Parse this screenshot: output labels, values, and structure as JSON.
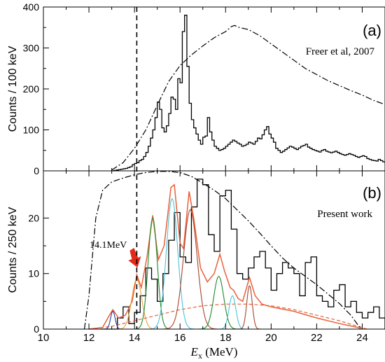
{
  "x_axis": {
    "label_symbol": "E",
    "label_subscript": "x",
    "label_unit": " (MeV)",
    "range": [
      10,
      25
    ],
    "ticks": [
      10,
      12,
      14,
      16,
      18,
      20,
      22,
      24
    ]
  },
  "chart_data": [
    {
      "type": "line",
      "panel": "(a)",
      "annotation": "Freer et al, 2007",
      "ylabel": "Counts / 100 keV",
      "ylim": [
        0,
        400
      ],
      "yticks": [
        0,
        100,
        200,
        300,
        400
      ],
      "series": [
        {
          "style": "histogram",
          "color": "#000000",
          "x_start": 13.0,
          "bin_width": 0.1,
          "values": [
            0,
            1,
            2,
            3,
            4,
            5,
            6,
            8,
            10,
            15,
            18,
            20,
            25,
            28,
            35,
            45,
            60,
            80,
            100,
            130,
            168,
            150,
            105,
            95,
            110,
            140,
            180,
            175,
            150,
            225,
            215,
            340,
            380,
            255,
            165,
            125,
            105,
            90,
            75,
            65,
            82,
            85,
            130,
            95,
            75,
            60,
            55,
            50,
            52,
            55,
            60,
            65,
            70,
            75,
            72,
            68,
            65,
            60,
            62,
            65,
            70,
            68,
            65,
            72,
            80,
            78,
            88,
            100,
            108,
            90,
            80,
            70,
            55,
            50,
            45,
            48,
            52,
            56,
            60,
            58,
            55,
            52,
            56,
            60,
            62,
            65,
            58,
            55,
            52,
            50,
            48,
            46,
            50,
            52,
            48,
            46,
            44,
            46,
            48,
            45,
            42,
            40,
            38,
            40,
            42,
            40,
            38,
            35,
            33,
            35,
            37,
            35,
            30,
            28,
            26,
            25,
            24,
            28,
            25,
            22,
            20,
            22,
            24,
            22,
            20,
            18,
            16,
            15,
            17,
            18,
            15,
            14,
            12,
            10,
            9,
            10,
            11,
            10,
            9,
            8,
            7,
            6,
            5,
            6,
            7,
            6,
            5,
            4,
            5,
            6,
            5,
            4,
            3,
            4,
            5,
            4,
            3,
            3,
            4,
            3,
            3,
            2,
            3,
            4,
            3,
            2
          ]
        },
        {
          "style": "dash-dot",
          "color": "#000000",
          "points": [
            [
              13.0,
              2
            ],
            [
              13.5,
              20
            ],
            [
              14.0,
              55
            ],
            [
              14.5,
              100
            ],
            [
              15.0,
              160
            ],
            [
              15.5,
              218
            ],
            [
              16.0,
              257
            ],
            [
              16.5,
              283
            ],
            [
              17.0,
              305
            ],
            [
              17.5,
              325
            ],
            [
              18.0,
              340
            ],
            [
              18.25,
              352
            ],
            [
              18.4,
              355
            ],
            [
              18.6,
              350
            ],
            [
              19.0,
              345
            ],
            [
              19.5,
              330
            ],
            [
              20.0,
              310
            ],
            [
              20.5,
              290
            ],
            [
              21.0,
              270
            ],
            [
              21.5,
              250
            ],
            [
              22.0,
              235
            ],
            [
              22.5,
              220
            ],
            [
              23.0,
              208
            ],
            [
              23.5,
              196
            ],
            [
              24.0,
              185
            ],
            [
              24.5,
              172
            ],
            [
              25.0,
              162
            ]
          ]
        }
      ]
    },
    {
      "type": "line",
      "panel": "(b)",
      "annotation": "Present work",
      "callout": "14.1MeV",
      "callout_x": 14.1,
      "ylabel": "Counts / 250 keV",
      "ylim": [
        0,
        28.5
      ],
      "yticks": [
        0,
        10,
        20
      ],
      "series": [
        {
          "style": "histogram",
          "color": "#000000",
          "x_start": 12.5,
          "bin_width": 0.25,
          "values": [
            0,
            0,
            0,
            2,
            4,
            1,
            3,
            6,
            11,
            9,
            5,
            10,
            16,
            21,
            13,
            12,
            22,
            27,
            26,
            17,
            14,
            24,
            25,
            18,
            10,
            9,
            11,
            13,
            14,
            11,
            7,
            10,
            12,
            11,
            10,
            6,
            12,
            13,
            6,
            5,
            4,
            7,
            8,
            4,
            5,
            3,
            2,
            3,
            4,
            2
          ]
        },
        {
          "style": "solid",
          "color": "#e8603a",
          "role": "total fit",
          "points": [
            [
              12.0,
              0
            ],
            [
              12.6,
              0.3
            ],
            [
              12.9,
              2.5
            ],
            [
              13.05,
              3.5
            ],
            [
              13.3,
              2.0
            ],
            [
              13.6,
              2.5
            ],
            [
              13.9,
              5.0
            ],
            [
              14.1,
              9.8
            ],
            [
              14.3,
              7.5
            ],
            [
              14.55,
              13.0
            ],
            [
              14.8,
              20.5
            ],
            [
              15.05,
              12.5
            ],
            [
              15.3,
              15.0
            ],
            [
              15.6,
              25.5
            ],
            [
              15.75,
              26.0
            ],
            [
              16.0,
              15.5
            ],
            [
              16.15,
              14.5
            ],
            [
              16.4,
              24.8
            ],
            [
              16.6,
              20.0
            ],
            [
              16.9,
              11.0
            ],
            [
              17.2,
              8.5
            ],
            [
              17.5,
              10.0
            ],
            [
              17.75,
              13.5
            ],
            [
              17.95,
              10.5
            ],
            [
              18.2,
              7.5
            ],
            [
              18.35,
              7.0
            ],
            [
              18.55,
              5.5
            ],
            [
              18.75,
              5.0
            ],
            [
              19.05,
              9.3
            ],
            [
              19.3,
              6.0
            ],
            [
              19.6,
              4.5
            ],
            [
              20.0,
              4.0
            ],
            [
              21.0,
              3.2
            ],
            [
              22.0,
              2.0
            ],
            [
              23.0,
              1.0
            ],
            [
              23.8,
              0.3
            ],
            [
              24.0,
              0
            ]
          ]
        },
        {
          "style": "dashed",
          "color": "#e8603a",
          "role": "background",
          "points": [
            [
              12.0,
              0
            ],
            [
              13.0,
              0.5
            ],
            [
              14.0,
              1.5
            ],
            [
              15.0,
              2.5
            ],
            [
              16.0,
              3.5
            ],
            [
              17.0,
              4.2
            ],
            [
              18.0,
              4.5
            ],
            [
              19.0,
              4.5
            ],
            [
              20.0,
              4.2
            ],
            [
              21.0,
              3.5
            ],
            [
              22.0,
              2.5
            ],
            [
              23.0,
              1.5
            ],
            [
              23.8,
              0.5
            ],
            [
              24.2,
              0
            ]
          ]
        },
        {
          "style": "dash-dot",
          "color": "#000000",
          "role": "efficiency",
          "points": [
            [
              11.8,
              0
            ],
            [
              12.0,
              6
            ],
            [
              12.3,
              20
            ],
            [
              12.6,
              25
            ],
            [
              13.0,
              26.5
            ],
            [
              13.5,
              27.2
            ],
            [
              14.0,
              27.8
            ],
            [
              14.5,
              28.2
            ],
            [
              15.0,
              28.4
            ],
            [
              15.5,
              28.4
            ],
            [
              16.0,
              28.2
            ],
            [
              16.5,
              27.5
            ],
            [
              17.0,
              26.3
            ],
            [
              17.5,
              25.0
            ],
            [
              18.0,
              23.5
            ],
            [
              18.5,
              21.5
            ],
            [
              19.0,
              19.5
            ],
            [
              19.5,
              17.3
            ],
            [
              20.0,
              15.0
            ],
            [
              20.5,
              12.8
            ],
            [
              21.0,
              11.0
            ],
            [
              21.5,
              9.5
            ],
            [
              22.0,
              8.0
            ],
            [
              22.5,
              6.3
            ],
            [
              23.0,
              4.6
            ],
            [
              23.5,
              2.5
            ],
            [
              23.8,
              0.8
            ],
            [
              24.0,
              0
            ]
          ]
        },
        {
          "style": "gaussian-peaks",
          "peaks": [
            {
              "center": 13.05,
              "height": 3.2,
              "sigma": 0.1,
              "color": "#2a3a9c"
            },
            {
              "center": 14.1,
              "height": 9.0,
              "sigma": 0.22,
              "color": "#e8a040"
            },
            {
              "center": 14.8,
              "height": 20.0,
              "sigma": 0.2,
              "color": "#1e8a2a"
            },
            {
              "center": 15.65,
              "height": 23.5,
              "sigma": 0.25,
              "color": "#4ec3d8"
            },
            {
              "center": 16.45,
              "height": 21.5,
              "sigma": 0.3,
              "color": "#a8442a"
            },
            {
              "center": 17.7,
              "height": 9.5,
              "sigma": 0.22,
              "color": "#1e8a2a"
            },
            {
              "center": 18.3,
              "height": 6.0,
              "sigma": 0.15,
              "color": "#4ec3d8"
            },
            {
              "center": 19.05,
              "height": 7.8,
              "sigma": 0.12,
              "color": "#a8442a"
            }
          ]
        }
      ]
    }
  ]
}
